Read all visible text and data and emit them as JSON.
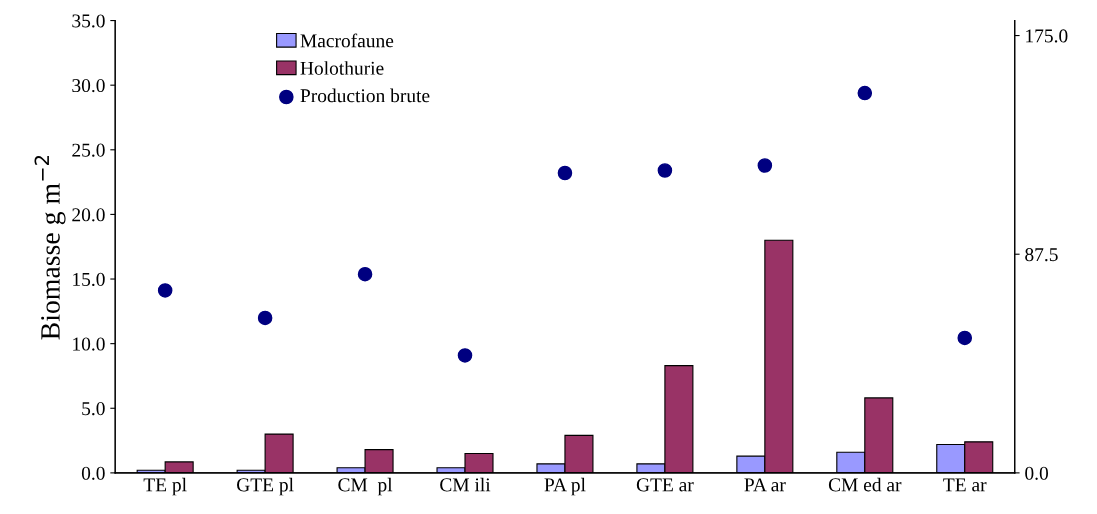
{
  "chart_data": {
    "type": "bar",
    "ylabel": "Biomasse g m$^{−2}$",
    "categories": [
      "TE pl",
      "GTE pl",
      "CM  pl",
      "CM ili",
      "PA pl",
      "GTE ar",
      "PA ar",
      "CM ed ar",
      "TE ar"
    ],
    "series": [
      {
        "name": "Macrofaune",
        "color": "#9999ff",
        "values": [
          0.2,
          0.2,
          0.4,
          0.4,
          0.7,
          0.7,
          1.3,
          1.6,
          2.2
        ]
      },
      {
        "name": "Holothurie",
        "color": "#993366",
        "values": [
          0.85,
          3.0,
          1.8,
          1.5,
          2.9,
          8.3,
          18.0,
          5.8,
          2.4
        ]
      },
      {
        "name": "Production brute",
        "type": "scatter",
        "axis": "y2",
        "color": "#000080",
        "values": [
          73,
          62,
          79.5,
          47,
          120,
          121,
          123,
          152,
          54
        ]
      }
    ],
    "ylim": [
      0,
      35
    ],
    "yticks": [
      {
        "value": 0,
        "label": "0.0"
      },
      {
        "value": 5,
        "label": "5.0"
      },
      {
        "value": 10,
        "label": "10.0"
      },
      {
        "value": 15,
        "label": "15.0"
      },
      {
        "value": 20,
        "label": "20.0"
      },
      {
        "value": 25,
        "label": "25.0"
      },
      {
        "value": 30,
        "label": "30.0"
      },
      {
        "value": 35,
        "label": "35.0"
      }
    ],
    "y2lim": [
      0,
      181
    ],
    "y2ticks": [
      {
        "value": 0,
        "label": "0.0"
      },
      {
        "value": 87.5,
        "label": "87.5"
      },
      {
        "value": 175,
        "label": "175.0"
      }
    ],
    "marker": "circle",
    "grid": false,
    "legend": "top left"
  }
}
